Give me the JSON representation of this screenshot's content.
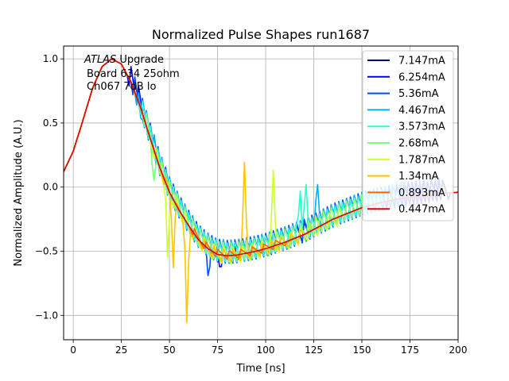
{
  "chart_data": {
    "type": "line",
    "title": "Normalized Pulse Shapes run1687",
    "xlabel": "Time [ns]",
    "ylabel": "Normalized Amplitude (A.U.)",
    "xlim": [
      -5,
      200
    ],
    "ylim": [
      -1.19,
      1.1
    ],
    "xticks": [
      0,
      25,
      50,
      75,
      100,
      125,
      150,
      175,
      200
    ],
    "yticks": [
      1.0,
      0.5,
      0.0,
      -0.5,
      -1.0
    ],
    "xtick_labels": [
      "0",
      "25",
      "50",
      "75",
      "100",
      "125",
      "150",
      "175",
      "200"
    ],
    "ytick_labels": [
      "1.0",
      "0.5",
      "0.0",
      "−0.5",
      "−1.0"
    ],
    "grid": true,
    "legend_position": "top-right",
    "annotation": {
      "italic": "ATLAS",
      "line1": " Upgrade",
      "line2": "Board 634 25ohm",
      "line3": "Ch067 7dB lo"
    },
    "base_shape": [
      [
        -5,
        0.12
      ],
      [
        0,
        0.28
      ],
      [
        5,
        0.52
      ],
      [
        10,
        0.77
      ],
      [
        15,
        0.94
      ],
      [
        20,
        1.0
      ],
      [
        25,
        0.96
      ],
      [
        30,
        0.82
      ],
      [
        35,
        0.62
      ],
      [
        40,
        0.38
      ],
      [
        45,
        0.15
      ],
      [
        50,
        -0.04
      ],
      [
        55,
        -0.18
      ],
      [
        60,
        -0.3
      ],
      [
        65,
        -0.41
      ],
      [
        70,
        -0.48
      ],
      [
        75,
        -0.525
      ],
      [
        80,
        -0.535
      ],
      [
        85,
        -0.53
      ],
      [
        90,
        -0.515
      ],
      [
        95,
        -0.5
      ],
      [
        100,
        -0.48
      ],
      [
        105,
        -0.455
      ],
      [
        110,
        -0.43
      ],
      [
        115,
        -0.4
      ],
      [
        120,
        -0.37
      ],
      [
        125,
        -0.33
      ],
      [
        130,
        -0.29
      ],
      [
        135,
        -0.25
      ],
      [
        140,
        -0.22
      ],
      [
        145,
        -0.19
      ],
      [
        150,
        -0.16
      ],
      [
        155,
        -0.14
      ],
      [
        160,
        -0.12
      ],
      [
        170,
        -0.09
      ],
      [
        180,
        -0.07
      ],
      [
        190,
        -0.05
      ],
      [
        200,
        -0.04
      ]
    ],
    "series": [
      {
        "name": "7.147mA",
        "color": "#00007f",
        "ring_start": 30,
        "ring_end": 195,
        "period": 4,
        "amp": 0.05,
        "spike_x": 85,
        "spike_y": -0.62
      },
      {
        "name": "6.254mA",
        "color": "#0000f1",
        "ring_start": 28,
        "ring_end": 190,
        "period": 4,
        "amp": 0.06,
        "spike_x": 76,
        "spike_y": -0.62
      },
      {
        "name": "5.36mA",
        "color": "#004cff",
        "ring_start": 30,
        "ring_end": 180,
        "period": 4,
        "amp": 0.06,
        "spike_x": 70,
        "spike_y": -0.69
      },
      {
        "name": "4.467mA",
        "color": "#00b0ff",
        "ring_start": 32,
        "ring_end": 170,
        "period": 4,
        "amp": 0.06,
        "spike_x": 35,
        "spike_y": 0.48
      },
      {
        "name": "3.573mA",
        "color": "#29ffce",
        "ring_start": 34,
        "ring_end": 160,
        "period": 4,
        "amp": 0.05,
        "spike_x": 118,
        "spike_y": -0.03
      },
      {
        "name": "2.68mA",
        "color": "#7dff7a",
        "ring_start": 36,
        "ring_end": 150,
        "period": 4,
        "amp": 0.05,
        "spike_x": 42,
        "spike_y": -0.05
      },
      {
        "name": "1.787mA",
        "color": "#ceff29",
        "ring_start": 40,
        "ring_end": 140,
        "period": 5,
        "amp": 0.04,
        "spike_x": 104,
        "spike_y": 0.1
      },
      {
        "name": "1.34mA",
        "color": "#ffc400",
        "ring_start": 45,
        "ring_end": 120,
        "period": 5,
        "amp": 0.03,
        "spike_x": 59,
        "spike_y": -1.08
      },
      {
        "name": "0.893mA",
        "color": "#ff6800",
        "ring_start": 60,
        "ring_end": 110,
        "period": 6,
        "amp": 0.02,
        "spike_x": null,
        "spike_y": null
      },
      {
        "name": "0.447mA",
        "color": "#e50000",
        "ring_start": 0,
        "ring_end": 0,
        "period": 6,
        "amp": 0.0,
        "spike_x": null,
        "spike_y": null
      }
    ],
    "extra_spikes": [
      {
        "series": 7,
        "x": 89,
        "y": 0.17
      },
      {
        "series": 7,
        "x": 52,
        "y": -0.58
      },
      {
        "series": 6,
        "x": 49,
        "y": -0.58
      },
      {
        "series": 4,
        "x": 121,
        "y": -0.03
      },
      {
        "series": 3,
        "x": 127,
        "y": -0.04
      }
    ]
  }
}
